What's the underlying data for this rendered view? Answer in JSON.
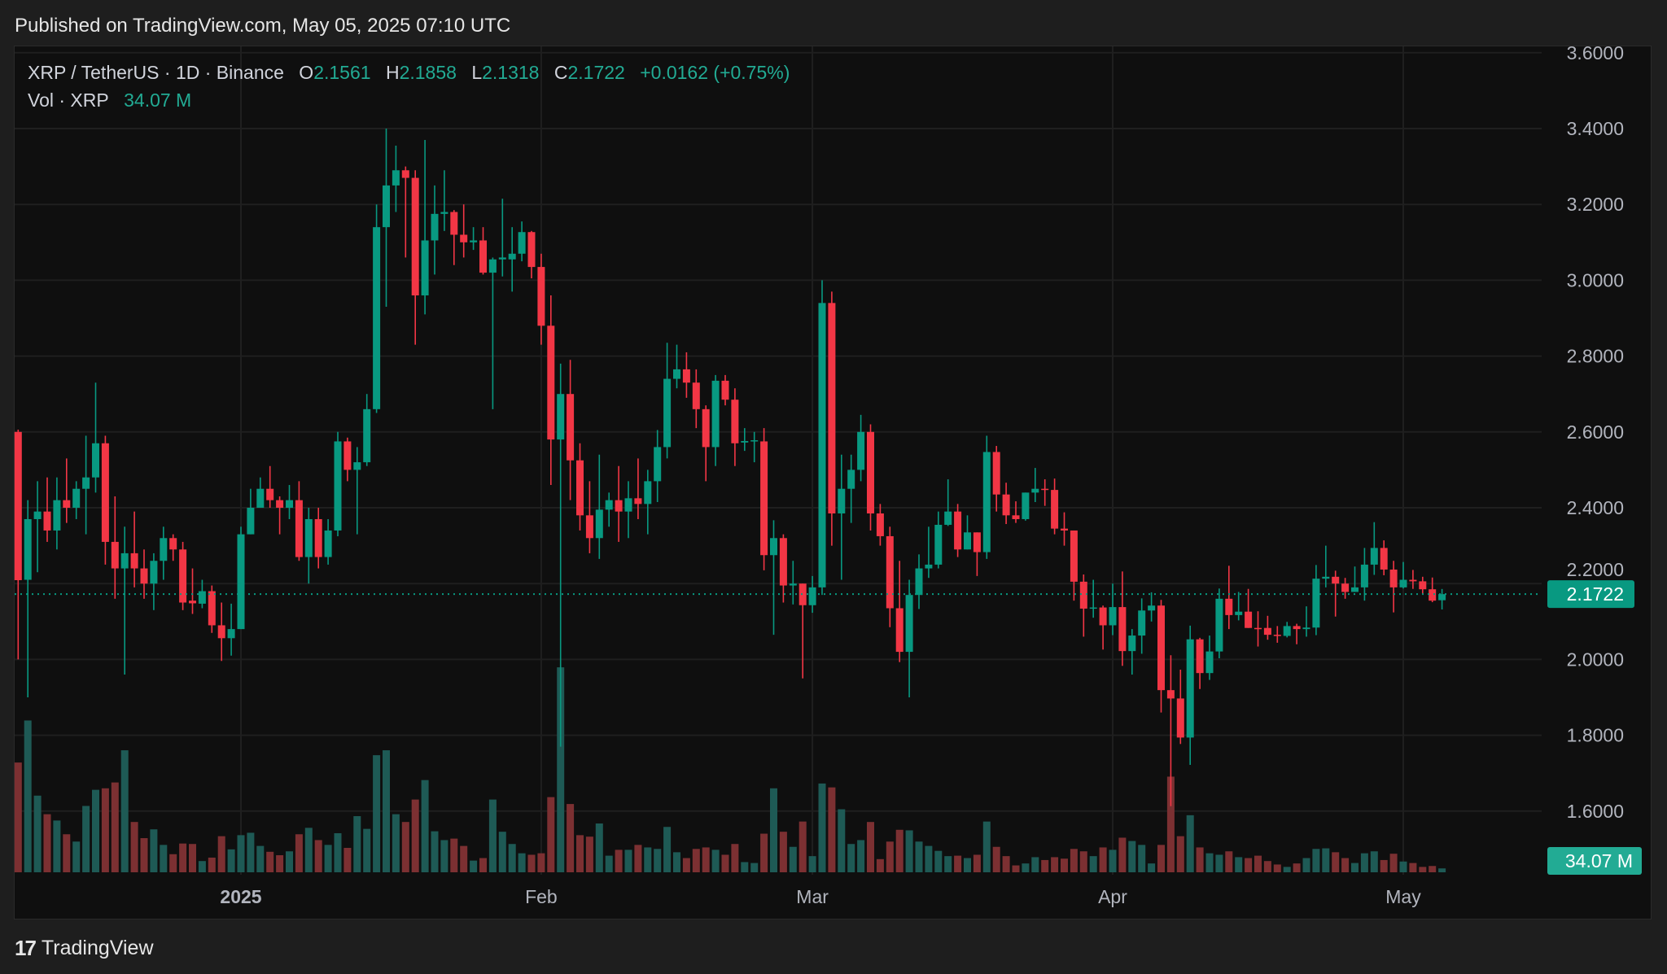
{
  "header": {
    "published": "Published on TradingView.com, May 05, 2025 07:10 UTC"
  },
  "legend": {
    "symbol": "XRP / TetherUS · 1D · Binance",
    "o_label": "O",
    "o": "2.1561",
    "h_label": "H",
    "h": "2.1858",
    "l_label": "L",
    "l": "2.1318",
    "c_label": "C",
    "c": "2.1722",
    "change": "+0.0162 (+0.75%)",
    "vol_label": "Vol · XRP",
    "vol": "34.07 M"
  },
  "footer": {
    "brand": "TradingView",
    "logo_glyph": "17"
  },
  "colors": {
    "up": "#089981",
    "down": "#f23645",
    "vol_up": "#1e5a55",
    "vol_down": "#7c3032",
    "grid": "#1f1f1f"
  },
  "chart_data": {
    "type": "candlestick",
    "title": "XRP / TetherUS · 1D · Binance",
    "ylim": [
      1.6,
      3.6
    ],
    "y_ticks": [
      "3.6000",
      "3.4000",
      "3.2000",
      "3.0000",
      "2.8000",
      "2.6000",
      "2.4000",
      "2.2000",
      "2.0000",
      "1.8000",
      "1.6000"
    ],
    "x_ticks": [
      {
        "label": "2025",
        "index": 23,
        "bold": true
      },
      {
        "label": "Feb",
        "index": 54
      },
      {
        "label": "Mar",
        "index": 82
      },
      {
        "label": "Apr",
        "index": 113
      },
      {
        "label": "May",
        "index": 143
      }
    ],
    "last_price_label": "2.1722",
    "last_volume_label": "34.07 M",
    "volume_unit": "M",
    "candles_ohlcv": [
      [
        2.6,
        2.606,
        2.0,
        2.209,
        958
      ],
      [
        2.21,
        2.42,
        1.9,
        2.37,
        1325
      ],
      [
        2.37,
        2.47,
        2.23,
        2.39,
        669
      ],
      [
        2.39,
        2.48,
        2.31,
        2.34,
        507
      ],
      [
        2.34,
        2.48,
        2.29,
        2.42,
        452
      ],
      [
        2.42,
        2.53,
        2.36,
        2.4,
        332
      ],
      [
        2.4,
        2.47,
        2.37,
        2.45,
        268
      ],
      [
        2.45,
        2.59,
        2.33,
        2.48,
        579
      ],
      [
        2.48,
        2.73,
        2.44,
        2.57,
        720
      ],
      [
        2.57,
        2.59,
        2.25,
        2.31,
        733
      ],
      [
        2.31,
        2.43,
        2.16,
        2.24,
        784
      ],
      [
        2.24,
        2.35,
        1.96,
        2.28,
        1065
      ],
      [
        2.28,
        2.39,
        2.19,
        2.24,
        439
      ],
      [
        2.24,
        2.29,
        2.16,
        2.2,
        298
      ],
      [
        2.2,
        2.28,
        2.13,
        2.26,
        375
      ],
      [
        2.26,
        2.35,
        2.21,
        2.32,
        239
      ],
      [
        2.32,
        2.33,
        2.26,
        2.29,
        158
      ],
      [
        2.29,
        2.31,
        2.13,
        2.15,
        251
      ],
      [
        2.155,
        2.24,
        2.12,
        2.148,
        247
      ],
      [
        2.147,
        2.21,
        2.135,
        2.18,
        98
      ],
      [
        2.18,
        2.195,
        2.07,
        2.09,
        128
      ],
      [
        2.09,
        2.15,
        1.996,
        2.056,
        315
      ],
      [
        2.056,
        2.147,
        2.01,
        2.08,
        200
      ],
      [
        2.08,
        2.35,
        2.08,
        2.33,
        324
      ],
      [
        2.33,
        2.45,
        2.33,
        2.4,
        345
      ],
      [
        2.4,
        2.48,
        2.4,
        2.45,
        230
      ],
      [
        2.45,
        2.51,
        2.4,
        2.42,
        179
      ],
      [
        2.42,
        2.43,
        2.33,
        2.4,
        149
      ],
      [
        2.4,
        2.46,
        2.37,
        2.42,
        183
      ],
      [
        2.42,
        2.47,
        2.26,
        2.27,
        332
      ],
      [
        2.27,
        2.4,
        2.2,
        2.37,
        388
      ],
      [
        2.37,
        2.4,
        2.24,
        2.27,
        281
      ],
      [
        2.27,
        2.37,
        2.25,
        2.34,
        239
      ],
      [
        2.34,
        2.6,
        2.325,
        2.575,
        341
      ],
      [
        2.575,
        2.585,
        2.47,
        2.5,
        213
      ],
      [
        2.5,
        2.56,
        2.33,
        2.52,
        490
      ],
      [
        2.52,
        2.7,
        2.51,
        2.66,
        379
      ],
      [
        2.66,
        3.2,
        2.65,
        3.14,
        1022
      ],
      [
        3.14,
        3.4,
        2.93,
        3.25,
        1065
      ],
      [
        3.25,
        3.355,
        3.18,
        3.29,
        507
      ],
      [
        3.29,
        3.3,
        3.06,
        3.27,
        439
      ],
      [
        3.27,
        3.29,
        2.83,
        2.96,
        635
      ],
      [
        2.96,
        3.37,
        2.91,
        3.105,
        805
      ],
      [
        3.105,
        3.25,
        3.015,
        3.175,
        358
      ],
      [
        3.175,
        3.29,
        3.13,
        3.18,
        281
      ],
      [
        3.18,
        3.185,
        3.04,
        3.12,
        294
      ],
      [
        3.12,
        3.2,
        3.06,
        3.1,
        230
      ],
      [
        3.1,
        3.14,
        3.08,
        3.105,
        102
      ],
      [
        3.105,
        3.14,
        3.015,
        3.02,
        124
      ],
      [
        3.02,
        3.06,
        2.66,
        3.055,
        635
      ],
      [
        3.055,
        3.215,
        3.01,
        3.06,
        354
      ],
      [
        3.055,
        3.14,
        2.97,
        3.07,
        247
      ],
      [
        3.07,
        3.155,
        3.05,
        3.127,
        166
      ],
      [
        3.127,
        3.13,
        3.005,
        3.035,
        153
      ],
      [
        3.035,
        3.07,
        2.83,
        2.88,
        166
      ],
      [
        2.88,
        2.96,
        2.46,
        2.58,
        656
      ],
      [
        2.58,
        2.78,
        1.77,
        2.7,
        1789
      ],
      [
        2.7,
        2.79,
        2.42,
        2.525,
        596
      ],
      [
        2.525,
        2.57,
        2.34,
        2.38,
        324
      ],
      [
        2.38,
        2.47,
        2.28,
        2.32,
        311
      ],
      [
        2.32,
        2.54,
        2.265,
        2.395,
        426
      ],
      [
        2.395,
        2.44,
        2.35,
        2.42,
        145
      ],
      [
        2.42,
        2.51,
        2.31,
        2.39,
        196
      ],
      [
        2.39,
        2.47,
        2.32,
        2.425,
        196
      ],
      [
        2.425,
        2.53,
        2.37,
        2.41,
        239
      ],
      [
        2.41,
        2.5,
        2.33,
        2.47,
        217
      ],
      [
        2.47,
        2.605,
        2.415,
        2.56,
        204
      ],
      [
        2.56,
        2.835,
        2.53,
        2.74,
        396
      ],
      [
        2.74,
        2.83,
        2.715,
        2.765,
        175
      ],
      [
        2.765,
        2.81,
        2.69,
        2.73,
        124
      ],
      [
        2.73,
        2.765,
        2.61,
        2.66,
        204
      ],
      [
        2.66,
        2.67,
        2.47,
        2.56,
        217
      ],
      [
        2.56,
        2.75,
        2.51,
        2.735,
        196
      ],
      [
        2.735,
        2.75,
        2.67,
        2.685,
        153
      ],
      [
        2.685,
        2.715,
        2.51,
        2.57,
        247
      ],
      [
        2.572,
        2.61,
        2.55,
        2.576,
        89
      ],
      [
        2.576,
        2.6,
        2.52,
        2.578,
        81
      ],
      [
        2.575,
        2.61,
        2.235,
        2.275,
        337
      ],
      [
        2.275,
        2.367,
        2.065,
        2.32,
        733
      ],
      [
        2.32,
        2.33,
        2.15,
        2.195,
        354
      ],
      [
        2.195,
        2.26,
        2.145,
        2.2,
        222
      ],
      [
        2.2,
        2.2,
        1.95,
        2.143,
        443
      ],
      [
        2.143,
        2.22,
        2.123,
        2.19,
        141
      ],
      [
        2.19,
        3.0,
        2.17,
        2.94,
        775
      ],
      [
        2.94,
        2.97,
        2.3,
        2.385,
        741
      ],
      [
        2.385,
        2.54,
        2.21,
        2.45,
        550
      ],
      [
        2.45,
        2.54,
        2.36,
        2.5,
        247
      ],
      [
        2.5,
        2.645,
        2.47,
        2.6,
        281
      ],
      [
        2.6,
        2.62,
        2.34,
        2.385,
        439
      ],
      [
        2.385,
        2.41,
        2.3,
        2.325,
        115
      ],
      [
        2.325,
        2.35,
        2.085,
        2.135,
        268
      ],
      [
        2.135,
        2.26,
        1.993,
        2.02,
        371
      ],
      [
        2.02,
        2.21,
        1.9,
        2.17,
        366
      ],
      [
        2.17,
        2.277,
        2.133,
        2.24,
        268
      ],
      [
        2.24,
        2.35,
        2.215,
        2.25,
        230
      ],
      [
        2.25,
        2.39,
        2.24,
        2.355,
        187
      ],
      [
        2.355,
        2.475,
        2.352,
        2.39,
        141
      ],
      [
        2.39,
        2.41,
        2.27,
        2.29,
        145
      ],
      [
        2.29,
        2.38,
        2.29,
        2.335,
        124
      ],
      [
        2.335,
        2.335,
        2.22,
        2.283,
        153
      ],
      [
        2.283,
        2.59,
        2.265,
        2.547,
        443
      ],
      [
        2.547,
        2.563,
        2.39,
        2.435,
        222
      ],
      [
        2.435,
        2.466,
        2.357,
        2.38,
        141
      ],
      [
        2.38,
        2.417,
        2.36,
        2.37,
        60
      ],
      [
        2.37,
        2.44,
        2.366,
        2.44,
        77
      ],
      [
        2.44,
        2.505,
        2.415,
        2.45,
        132
      ],
      [
        2.45,
        2.475,
        2.405,
        2.447,
        107
      ],
      [
        2.447,
        2.477,
        2.33,
        2.345,
        132
      ],
      [
        2.345,
        2.388,
        2.3,
        2.34,
        119
      ],
      [
        2.34,
        2.34,
        2.155,
        2.205,
        204
      ],
      [
        2.205,
        2.224,
        2.06,
        2.134,
        183
      ],
      [
        2.134,
        2.21,
        2.11,
        2.137,
        141
      ],
      [
        2.137,
        2.142,
        2.026,
        2.09,
        217
      ],
      [
        2.09,
        2.2,
        2.064,
        2.138,
        196
      ],
      [
        2.138,
        2.232,
        1.983,
        2.022,
        302
      ],
      [
        2.022,
        2.08,
        1.96,
        2.063,
        273
      ],
      [
        2.063,
        2.161,
        2.015,
        2.129,
        239
      ],
      [
        2.129,
        2.177,
        2.1,
        2.142,
        77
      ],
      [
        2.142,
        2.157,
        1.86,
        1.919,
        239
      ],
      [
        1.919,
        2.011,
        1.613,
        1.897,
        835
      ],
      [
        1.897,
        1.973,
        1.777,
        1.794,
        315
      ],
      [
        1.794,
        2.089,
        1.722,
        2.053,
        498
      ],
      [
        2.053,
        2.057,
        1.922,
        1.964,
        217
      ],
      [
        1.964,
        2.063,
        1.946,
        2.021,
        166
      ],
      [
        2.021,
        2.187,
        2.003,
        2.16,
        153
      ],
      [
        2.16,
        2.247,
        2.08,
        2.117,
        183
      ],
      [
        2.117,
        2.178,
        2.103,
        2.126,
        132
      ],
      [
        2.126,
        2.186,
        2.083,
        2.083,
        124
      ],
      [
        2.083,
        2.127,
        2.034,
        2.081,
        145
      ],
      [
        2.083,
        2.115,
        2.052,
        2.065,
        98
      ],
      [
        2.065,
        2.088,
        2.044,
        2.062,
        68
      ],
      [
        2.062,
        2.099,
        2.058,
        2.088,
        47
      ],
      [
        2.088,
        2.094,
        2.04,
        2.08,
        77
      ],
      [
        2.08,
        2.14,
        2.06,
        2.084,
        124
      ],
      [
        2.084,
        2.249,
        2.064,
        2.213,
        204
      ],
      [
        2.213,
        2.3,
        2.19,
        2.218,
        209
      ],
      [
        2.218,
        2.234,
        2.113,
        2.2,
        175
      ],
      [
        2.2,
        2.215,
        2.16,
        2.178,
        124
      ],
      [
        2.178,
        2.245,
        2.178,
        2.19,
        81
      ],
      [
        2.19,
        2.294,
        2.155,
        2.25,
        166
      ],
      [
        2.25,
        2.362,
        2.223,
        2.294,
        183
      ],
      [
        2.294,
        2.314,
        2.222,
        2.237,
        107
      ],
      [
        2.237,
        2.26,
        2.124,
        2.19,
        162
      ],
      [
        2.19,
        2.257,
        2.187,
        2.21,
        94
      ],
      [
        2.21,
        2.236,
        2.186,
        2.206,
        81
      ],
      [
        2.206,
        2.218,
        2.172,
        2.185,
        47
      ],
      [
        2.185,
        2.216,
        2.151,
        2.155,
        55
      ],
      [
        2.1561,
        2.1858,
        2.1318,
        2.1722,
        34.07
      ]
    ]
  }
}
